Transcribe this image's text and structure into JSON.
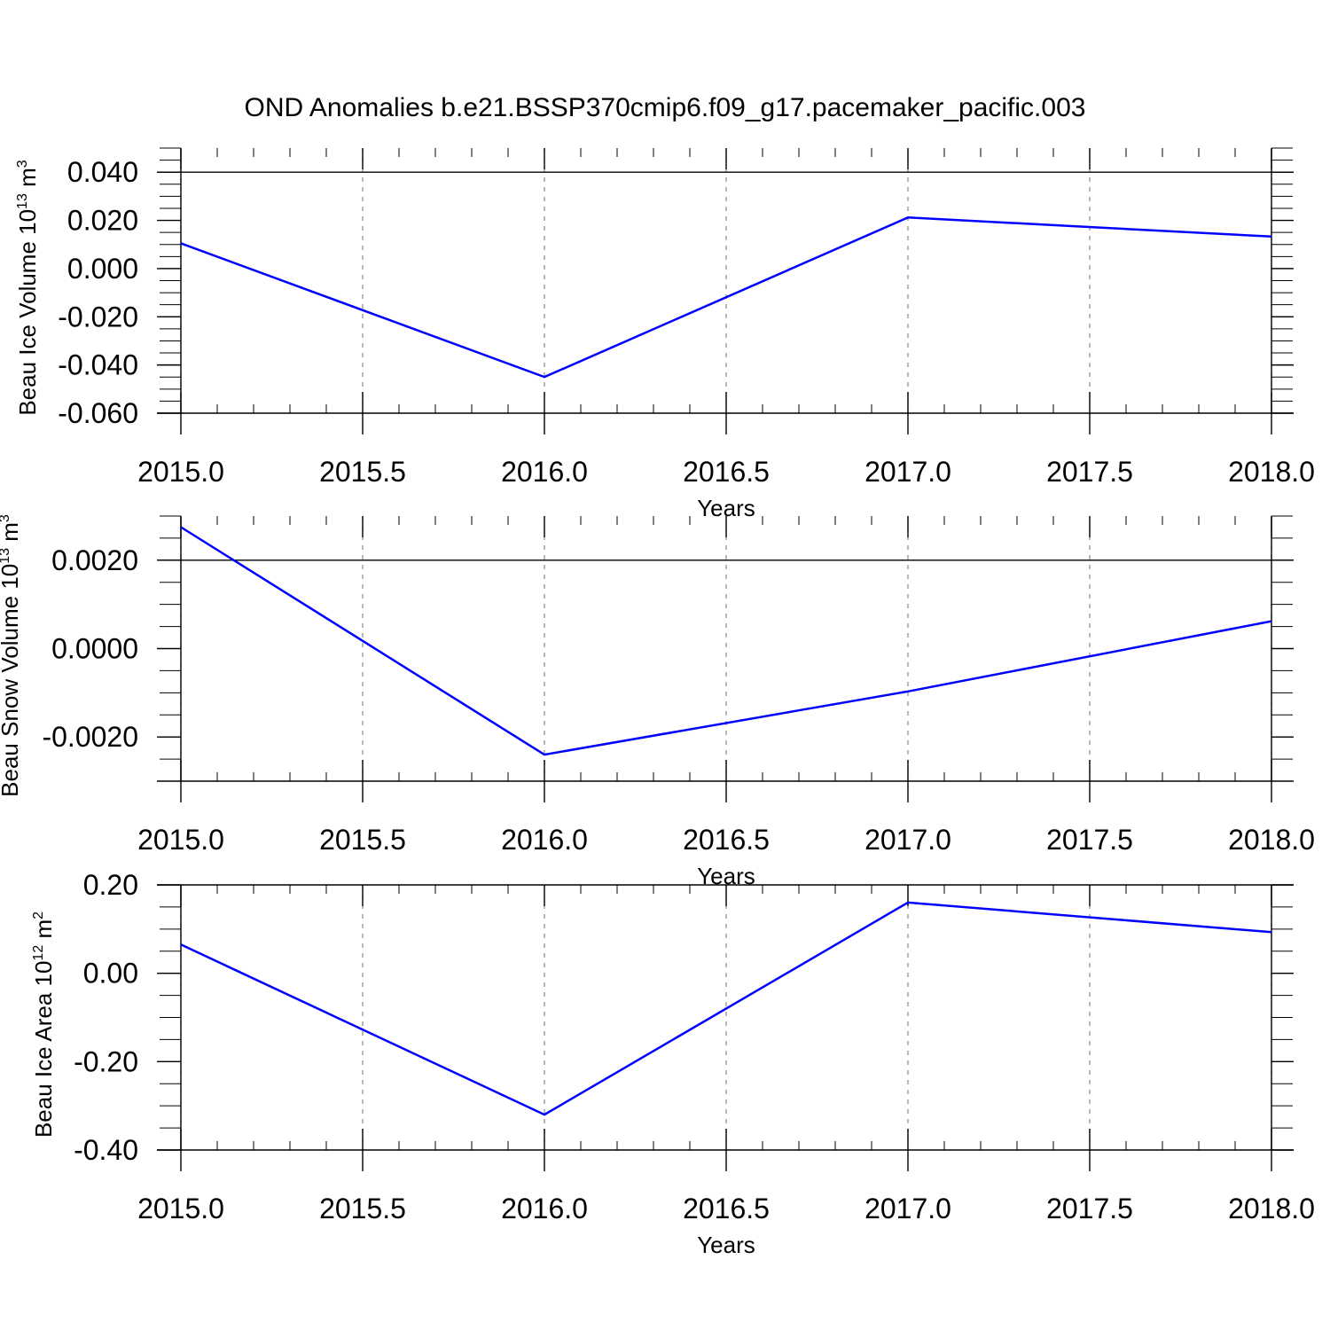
{
  "title": "OND Anomalies b.e21.BSSP370cmip6.f09_g17.pacemaker_pacific.003",
  "colors": {
    "line": "#0000ff",
    "axis": "#000000",
    "grid": "#888888"
  },
  "chart_data": [
    {
      "type": "line",
      "title": "",
      "xlabel": "Years",
      "ylabel": {
        "main": "Beau Ice Volume 10",
        "exp": "13",
        "unit": " m",
        "unit_exp": "3"
      },
      "xlim": [
        2015.0,
        2018.0
      ],
      "ylim": [
        -0.06,
        0.05
      ],
      "xticks": [
        2015.0,
        2015.5,
        2016.0,
        2016.5,
        2017.0,
        2017.5,
        2018.0
      ],
      "xtick_labels": [
        "2015.0",
        "2015.5",
        "2016.0",
        "2016.5",
        "2017.0",
        "2017.5",
        "2018.0"
      ],
      "yticks": [
        -0.06,
        -0.04,
        -0.02,
        0.0,
        0.02,
        0.04
      ],
      "ytick_labels": [
        "-0.060",
        "-0.040",
        "-0.020",
        "0.000",
        "0.020",
        "0.040"
      ],
      "grid": "x-dashed",
      "series": [
        {
          "x": [
            2015.0,
            2016.0,
            2017.0,
            2018.0
          ],
          "y": [
            0.0105,
            -0.045,
            0.0212,
            0.0133
          ]
        }
      ]
    },
    {
      "type": "line",
      "title": "",
      "xlabel": "Years",
      "ylabel": {
        "main": "Beau Snow Volume 10",
        "exp": "13",
        "unit": " m",
        "unit_exp": "3"
      },
      "xlim": [
        2015.0,
        2018.0
      ],
      "ylim": [
        -0.003,
        0.003
      ],
      "xticks": [
        2015.0,
        2015.5,
        2016.0,
        2016.5,
        2017.0,
        2017.5,
        2018.0
      ],
      "xtick_labels": [
        "2015.0",
        "2015.5",
        "2016.0",
        "2016.5",
        "2017.0",
        "2017.5",
        "2018.0"
      ],
      "yticks": [
        -0.002,
        0.0,
        0.002
      ],
      "ytick_labels": [
        "-0.0020",
        "0.0000",
        "0.0020"
      ],
      "grid": "x-dashed",
      "series": [
        {
          "x": [
            2015.0,
            2016.0,
            2017.0,
            2018.0
          ],
          "y": [
            0.00275,
            -0.0024,
            -0.00097,
            0.00062
          ]
        }
      ]
    },
    {
      "type": "line",
      "title": "",
      "xlabel": "Years",
      "ylabel": {
        "main": "Beau Ice Area 10",
        "exp": "12",
        "unit": " m",
        "unit_exp": "2"
      },
      "xlim": [
        2015.0,
        2018.0
      ],
      "ylim": [
        -0.4,
        0.2
      ],
      "xticks": [
        2015.0,
        2015.5,
        2016.0,
        2016.5,
        2017.0,
        2017.5,
        2018.0
      ],
      "xtick_labels": [
        "2015.0",
        "2015.5",
        "2016.0",
        "2016.5",
        "2017.0",
        "2017.5",
        "2018.0"
      ],
      "yticks": [
        -0.4,
        -0.2,
        0.0,
        0.2
      ],
      "ytick_labels": [
        "-0.40",
        "-0.20",
        "0.00",
        "0.20"
      ],
      "grid": "x-dashed",
      "series": [
        {
          "x": [
            2015.0,
            2016.0,
            2017.0,
            2018.0
          ],
          "y": [
            0.065,
            -0.32,
            0.16,
            0.093
          ]
        }
      ]
    }
  ]
}
